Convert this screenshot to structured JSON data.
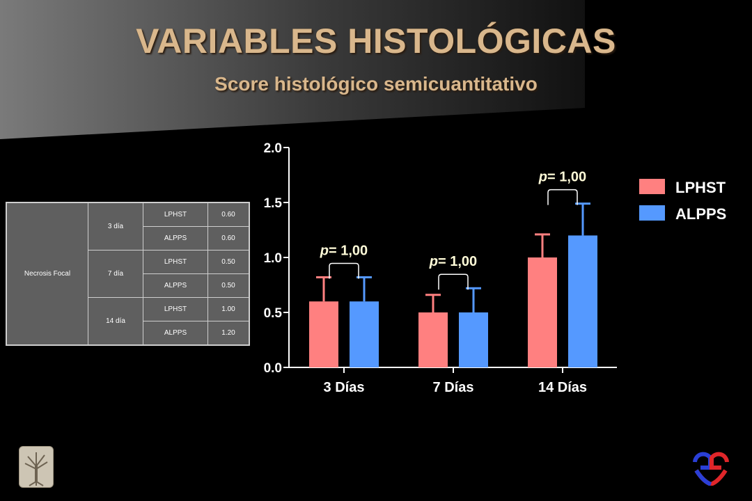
{
  "title": "VARIABLES HISTOLÓGICAS",
  "subtitle": "Score histológico semicuantitativo",
  "table": {
    "variable": "Necrosis Focal",
    "groups": [
      {
        "day": "3 día",
        "rows": [
          {
            "group": "LPHST",
            "value": "0.60"
          },
          {
            "group": "ALPPS",
            "value": "0.60"
          }
        ]
      },
      {
        "day": "7 día",
        "rows": [
          {
            "group": "LPHST",
            "value": "0.50"
          },
          {
            "group": "ALPPS",
            "value": "0.50"
          }
        ]
      },
      {
        "day": "14 día",
        "rows": [
          {
            "group": "LPHST",
            "value": "1.00"
          },
          {
            "group": "ALPPS",
            "value": "1.20"
          }
        ]
      }
    ]
  },
  "chart_data": {
    "type": "bar",
    "categories": [
      "3 Días",
      "7 Días",
      "14 Días"
    ],
    "series": [
      {
        "name": "LPHST",
        "values": [
          0.6,
          0.5,
          1.0
        ],
        "errors": [
          0.22,
          0.16,
          0.21
        ],
        "color": "#ff8080"
      },
      {
        "name": "ALPPS",
        "values": [
          0.6,
          0.5,
          1.2
        ],
        "errors": [
          0.22,
          0.22,
          0.29
        ],
        "color": "#5599ff"
      }
    ],
    "ylim": [
      0,
      2.0
    ],
    "yticks": [
      "0.0",
      "0.5",
      "1.0",
      "1.5",
      "2.0"
    ],
    "annotations": [
      {
        "category": "3 Días",
        "text": "= 1,00",
        "prefix": "p"
      },
      {
        "category": "7 Días",
        "text": "= 1,00",
        "prefix": "p"
      },
      {
        "category": "14 Días",
        "text": "= 1,00",
        "prefix": "p"
      }
    ],
    "legend_position": "top-right",
    "grid": false
  },
  "colors": {
    "title": "#d9b78c",
    "background": "#000000",
    "table_bg": "#5f5f5f"
  },
  "icons": {
    "left_logo": "tree-logo-icon",
    "right_logo": "heart-logo-icon"
  }
}
